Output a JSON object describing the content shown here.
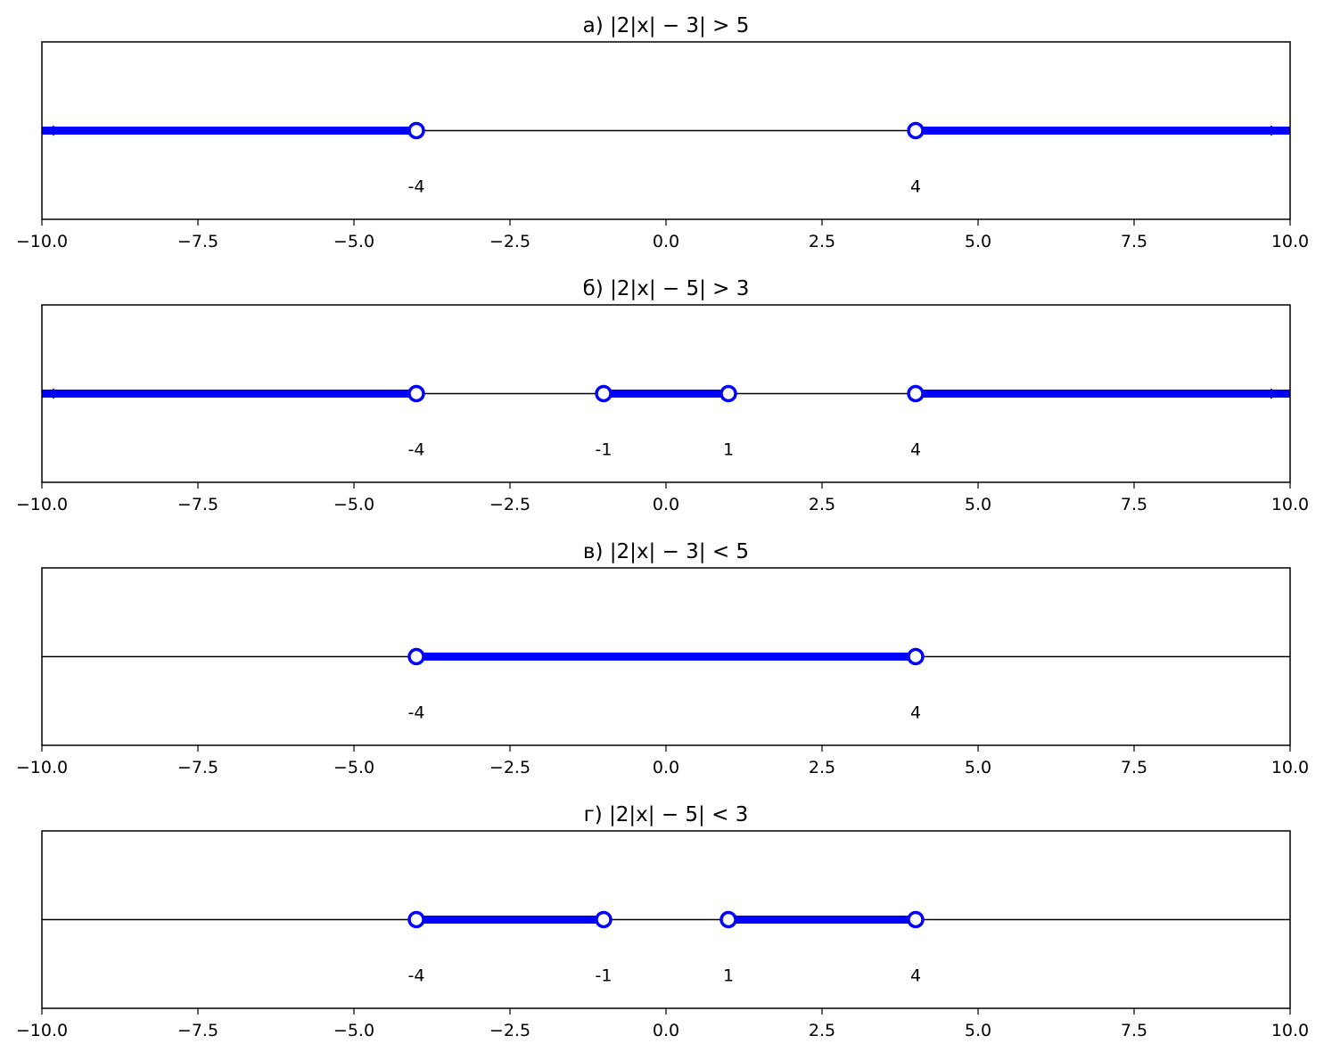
{
  "chart_data": [
    {
      "type": "number-line",
      "title": "а) |2|x| − 3| > 5",
      "xlim": [
        -10,
        10
      ],
      "x_ticks": [
        -10.0,
        -7.5,
        -5.0,
        -2.5,
        0.0,
        2.5,
        5.0,
        7.5,
        10.0
      ],
      "x_tick_labels": [
        "−10.0",
        "−7.5",
        "−5.0",
        "−2.5",
        "0.0",
        "2.5",
        "5.0",
        "7.5",
        "10.0"
      ],
      "intervals": [
        [
          -10,
          -4
        ],
        [
          4,
          10
        ]
      ],
      "open_points": [
        -4,
        4
      ],
      "point_labels": [
        "-4",
        "4"
      ],
      "arrows": [
        "left",
        "right"
      ],
      "color": "#0000ff"
    },
    {
      "type": "number-line",
      "title": "б) |2|x| − 5| > 3",
      "xlim": [
        -10,
        10
      ],
      "x_ticks": [
        -10.0,
        -7.5,
        -5.0,
        -2.5,
        0.0,
        2.5,
        5.0,
        7.5,
        10.0
      ],
      "x_tick_labels": [
        "−10.0",
        "−7.5",
        "−5.0",
        "−2.5",
        "0.0",
        "2.5",
        "5.0",
        "7.5",
        "10.0"
      ],
      "intervals": [
        [
          -10,
          -4
        ],
        [
          -1,
          1
        ],
        [
          4,
          10
        ]
      ],
      "open_points": [
        -4,
        -1,
        1,
        4
      ],
      "point_labels": [
        "-4",
        "-1",
        "1",
        "4"
      ],
      "arrows": [
        "left",
        "right"
      ],
      "color": "#0000ff"
    },
    {
      "type": "number-line",
      "title": "в) |2|x| − 3| < 5",
      "xlim": [
        -10,
        10
      ],
      "x_ticks": [
        -10.0,
        -7.5,
        -5.0,
        -2.5,
        0.0,
        2.5,
        5.0,
        7.5,
        10.0
      ],
      "x_tick_labels": [
        "−10.0",
        "−7.5",
        "−5.0",
        "−2.5",
        "0.0",
        "2.5",
        "5.0",
        "7.5",
        "10.0"
      ],
      "intervals": [
        [
          -4,
          4
        ]
      ],
      "open_points": [
        -4,
        4
      ],
      "point_labels": [
        "-4",
        "4"
      ],
      "arrows": [],
      "color": "#0000ff"
    },
    {
      "type": "number-line",
      "title": "г) |2|x| − 5| < 3",
      "xlim": [
        -10,
        10
      ],
      "x_ticks": [
        -10.0,
        -7.5,
        -5.0,
        -2.5,
        0.0,
        2.5,
        5.0,
        7.5,
        10.0
      ],
      "x_tick_labels": [
        "−10.0",
        "−7.5",
        "−5.0",
        "−2.5",
        "0.0",
        "2.5",
        "5.0",
        "7.5",
        "10.0"
      ],
      "intervals": [
        [
          -4,
          -1
        ],
        [
          1,
          4
        ]
      ],
      "open_points": [
        -4,
        -1,
        1,
        4
      ],
      "point_labels": [
        "-4",
        "-1",
        "1",
        "4"
      ],
      "arrows": [],
      "color": "#0000ff"
    }
  ]
}
